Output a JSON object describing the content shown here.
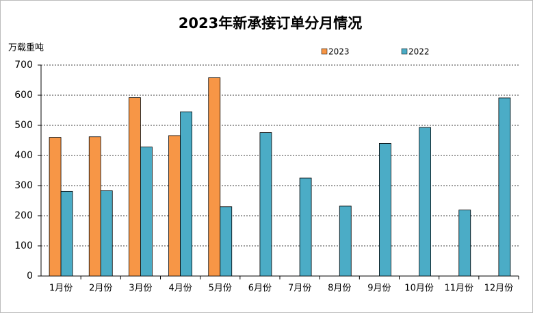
{
  "chart_data": {
    "type": "bar",
    "title": "2023年新承接订单分月情况",
    "y_label": "万载重吨",
    "categories": [
      "1月份",
      "2月份",
      "3月份",
      "4月份",
      "5月份",
      "6月份",
      "7月份",
      "8月份",
      "9月份",
      "10月份",
      "11月份",
      "12月份"
    ],
    "series": [
      {
        "name": "2023",
        "color": "#f79646",
        "values": [
          460,
          462,
          592,
          466,
          658,
          null,
          null,
          null,
          null,
          null,
          null,
          null
        ]
      },
      {
        "name": "2022",
        "color": "#4bacc6",
        "values": [
          281,
          283,
          428,
          545,
          230,
          476,
          325,
          232,
          440,
          493,
          219,
          591
        ]
      }
    ],
    "ylim": [
      0,
      700
    ],
    "yticks": [
      0,
      100,
      200,
      300,
      400,
      500,
      600,
      700
    ],
    "grid": true
  }
}
